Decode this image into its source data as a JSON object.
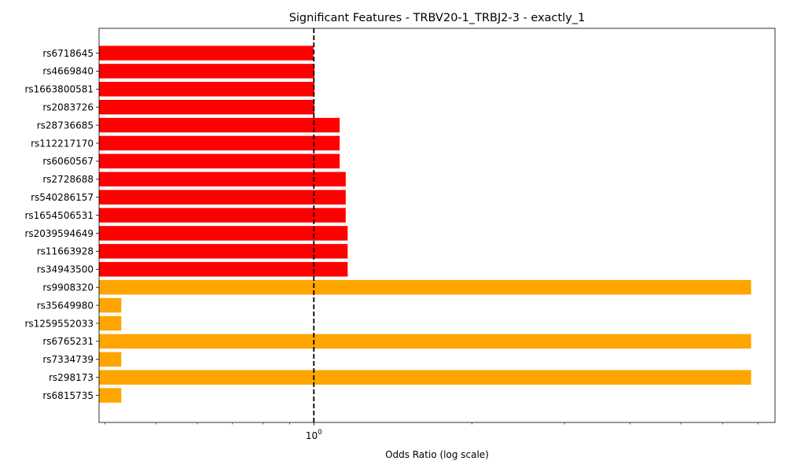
{
  "chart_data": {
    "type": "bar",
    "orientation": "horizontal",
    "title": "Significant Features - TRBV20-1_TRBJ2-3 - exactly_1",
    "xlabel": "Odds Ratio (log scale)",
    "ylabel": "",
    "xscale": "log",
    "xlim": [
      0.39,
      7.55
    ],
    "x_tick_labels": [
      {
        "value": 1,
        "base": "10",
        "exp": "0"
      }
    ],
    "x_minor_ticks": [
      0.4,
      0.5,
      0.6,
      0.7,
      0.8,
      0.9,
      2,
      3,
      4,
      5,
      6,
      7
    ],
    "reference_line": {
      "x": 1,
      "style": "dashed",
      "color": "#000000"
    },
    "grid": false,
    "categories": [
      "rs6718645",
      "rs4669840",
      "rs1663800581",
      "rs2083726",
      "rs28736685",
      "rs112217170",
      "rs6060567",
      "rs2728688",
      "rs540286157",
      "rs1654506531",
      "rs2039594649",
      "rs11663928",
      "rs34943500",
      "rs9908320",
      "rs35649980",
      "rs1259552033",
      "rs6765231",
      "rs7334739",
      "rs298173",
      "rs6815735"
    ],
    "values": [
      0.998,
      1.003,
      1.003,
      1.003,
      1.12,
      1.12,
      1.12,
      1.15,
      1.15,
      1.15,
      1.16,
      1.16,
      1.16,
      6.8,
      0.43,
      0.43,
      6.8,
      0.43,
      6.8,
      0.43
    ],
    "bar_colors": [
      "#ff0000",
      "#ff0000",
      "#ff0000",
      "#ff0000",
      "#ff0000",
      "#ff0000",
      "#ff0000",
      "#ff0000",
      "#ff0000",
      "#ff0000",
      "#ff0000",
      "#ff0000",
      "#ff0000",
      "#ffa500",
      "#ffa500",
      "#ffa500",
      "#ffa500",
      "#ffa500",
      "#ffa500",
      "#ffa500"
    ]
  }
}
